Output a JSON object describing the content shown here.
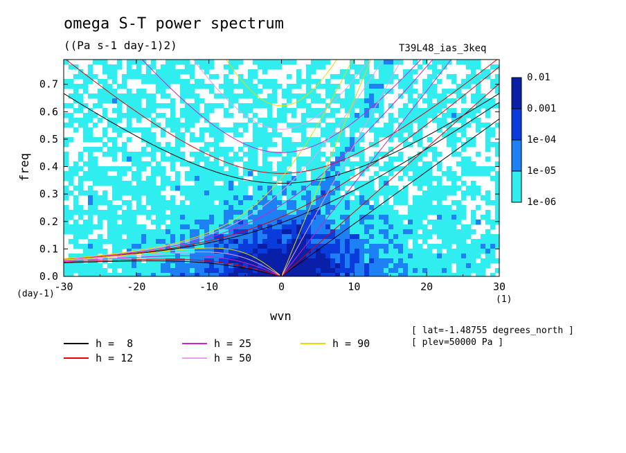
{
  "title": "omega S-T power spectrum",
  "subtitle": "((Pa s-1 day-1)2)",
  "run_name": "T39L48_ias_3keq",
  "meta": [
    "[ lat=-1.48755 degrees_north ]",
    "[ plev=50000 Pa ]"
  ],
  "units": {
    "y": "(day-1)",
    "x": "(1)"
  },
  "chart_data": {
    "type": "heatmap",
    "title": "omega S-T power spectrum",
    "subtitle": "((Pa s-1 day-1)2)",
    "xlabel": "wvn",
    "ylabel": "freq",
    "xlim": [
      -30,
      30
    ],
    "ylim": [
      0,
      0.79
    ],
    "x_ticks": [
      -30,
      -20,
      -10,
      0,
      10,
      20,
      30
    ],
    "x_tick_labels": [
      "-30",
      "-20",
      "-10",
      "0",
      "10",
      "20",
      "30"
    ],
    "y_ticks": [
      0,
      0.1,
      0.2,
      0.3,
      0.4,
      0.5,
      0.6,
      0.7
    ],
    "y_tick_labels": [
      "0.0",
      "0.1",
      "0.2",
      "0.3",
      "0.4",
      "0.5",
      "0.6",
      "0.7"
    ],
    "colorbar": {
      "levels": [
        "0.01",
        "0.001",
        "1e-04",
        "1e-05",
        "1e-06"
      ],
      "colors": [
        "#5a1fb0",
        "#0a1fa8",
        "#0a3cdc",
        "#1e80f5",
        "#30eef0"
      ]
    },
    "dispersion_curves": [
      {
        "name": "h =  8",
        "h": 8,
        "color": "#000000"
      },
      {
        "name": "h = 12",
        "h": 12,
        "color": "#e00000"
      },
      {
        "name": "h = 25",
        "h": 25,
        "color": "#d020d0"
      },
      {
        "name": "h = 50",
        "h": 50,
        "color": "#e8a0e8"
      },
      {
        "name": "h = 90",
        "h": 90,
        "color": "#e8d800"
      }
    ]
  }
}
